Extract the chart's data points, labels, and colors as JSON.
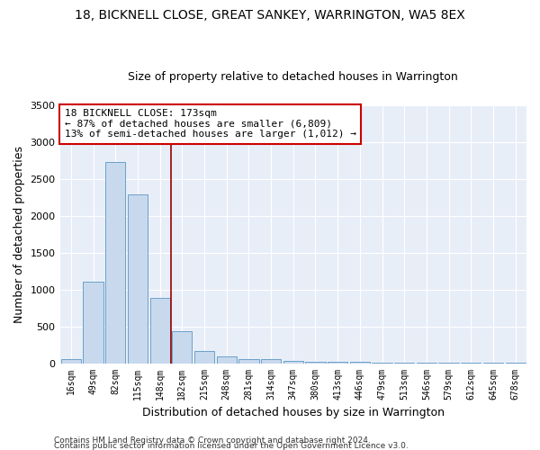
{
  "title": "18, BICKNELL CLOSE, GREAT SANKEY, WARRINGTON, WA5 8EX",
  "subtitle": "Size of property relative to detached houses in Warrington",
  "xlabel": "Distribution of detached houses by size in Warrington",
  "ylabel": "Number of detached properties",
  "bar_color": "#c8d9ee",
  "bar_edgecolor": "#6ca0c8",
  "background_color": "#e8eef8",
  "grid_color": "#ffffff",
  "categories": [
    "16sqm",
    "49sqm",
    "82sqm",
    "115sqm",
    "148sqm",
    "182sqm",
    "215sqm",
    "248sqm",
    "281sqm",
    "314sqm",
    "347sqm",
    "380sqm",
    "413sqm",
    "446sqm",
    "479sqm",
    "513sqm",
    "546sqm",
    "579sqm",
    "612sqm",
    "645sqm",
    "678sqm"
  ],
  "values": [
    50,
    1100,
    2730,
    2290,
    880,
    430,
    170,
    90,
    60,
    55,
    30,
    25,
    20,
    15,
    10,
    5,
    5,
    5,
    5,
    5,
    5
  ],
  "ylim": [
    0,
    3500
  ],
  "yticks": [
    0,
    500,
    1000,
    1500,
    2000,
    2500,
    3000,
    3500
  ],
  "property_line_x": 4.5,
  "annotation_title": "18 BICKNELL CLOSE: 173sqm",
  "annotation_line1": "← 87% of detached houses are smaller (6,809)",
  "annotation_line2": "13% of semi-detached houses are larger (1,012) →",
  "footer1": "Contains HM Land Registry data © Crown copyright and database right 2024.",
  "footer2": "Contains public sector information licensed under the Open Government Licence v3.0.",
  "title_fontsize": 10,
  "subtitle_fontsize": 9,
  "ylabel_fontsize": 9,
  "xlabel_fontsize": 9,
  "tick_fontsize": 7,
  "annotation_fontsize": 8,
  "footer_fontsize": 6.5
}
